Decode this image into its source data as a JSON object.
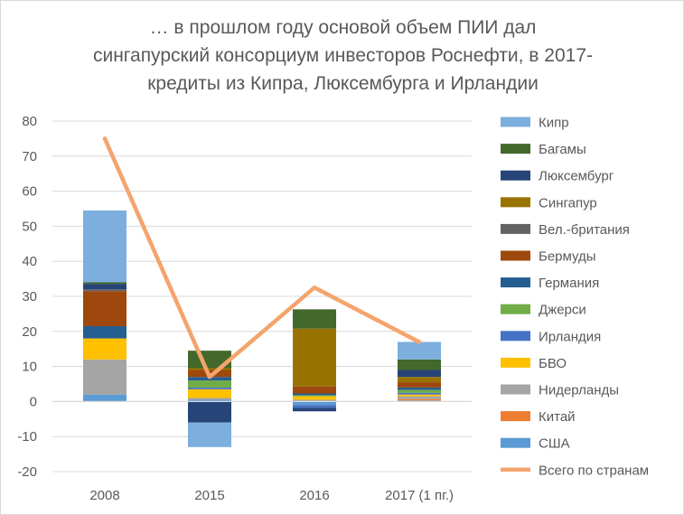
{
  "chart_data": {
    "type": "bar",
    "stacked": true,
    "title_lines": [
      "… в прошлом году основой объем ПИИ дал",
      "сингапурский консорциум инвесторов Роснефти, в 2017-",
      "кредиты из Кипра, Люксембурга и Ирландии"
    ],
    "categories": [
      "2008",
      "2015",
      "2016",
      "2017 (1 пг.)"
    ],
    "ylim": [
      -20,
      80
    ],
    "y_ticks": [
      -20,
      -10,
      0,
      10,
      20,
      30,
      40,
      50,
      60,
      70,
      80
    ],
    "grid": true,
    "legend_position": "right",
    "series": [
      {
        "name": "США",
        "color": "#5b9bd5",
        "values": [
          2,
          0.5,
          -1,
          0.3
        ]
      },
      {
        "name": "Китай",
        "color": "#ed7d31",
        "values": [
          0,
          0,
          0,
          0.4
        ]
      },
      {
        "name": "Нидерланды",
        "color": "#a5a5a5",
        "values": [
          10,
          0.5,
          0.5,
          0.8
        ]
      },
      {
        "name": "БВО",
        "color": "#ffc000",
        "values": [
          6,
          2.5,
          1,
          0.5
        ]
      },
      {
        "name": "Ирландия",
        "color": "#4472c4",
        "values": [
          0,
          0.5,
          -0.8,
          0.5
        ]
      },
      {
        "name": "Джерси",
        "color": "#70ad47",
        "values": [
          0,
          2,
          0.3,
          0.8
        ]
      },
      {
        "name": "Германия",
        "color": "#255e91",
        "values": [
          3.5,
          1,
          0.5,
          0.7
        ]
      },
      {
        "name": "Бермуды",
        "color": "#9e480e",
        "values": [
          10,
          2,
          2,
          1.5
        ]
      },
      {
        "name": "Вел.-британия",
        "color": "#636363",
        "values": [
          0.5,
          0,
          0,
          0
        ]
      },
      {
        "name": "Сингапур",
        "color": "#997300",
        "values": [
          0,
          0.5,
          16.5,
          1.5
        ]
      },
      {
        "name": "Люксембург",
        "color": "#264478",
        "values": [
          1.5,
          -6,
          -1,
          2
        ]
      },
      {
        "name": "Багамы",
        "color": "#43682b",
        "values": [
          0.5,
          5,
          5.5,
          3
        ]
      },
      {
        "name": "Кипр",
        "color": "#7cafdd",
        "values": [
          20.5,
          -7,
          0,
          5
        ]
      }
    ],
    "line_series": {
      "name": "Всего по странам",
      "color": "#f4a46c",
      "values": [
        75,
        7,
        32.5,
        17
      ]
    },
    "legend_order": [
      "Кипр",
      "Багамы",
      "Люксембург",
      "Сингапур",
      "Вел.-британия",
      "Бермуды",
      "Германия",
      "Джерси",
      "Ирландия",
      "БВО",
      "Нидерланды",
      "Китай",
      "США",
      "Всего по странам"
    ]
  }
}
